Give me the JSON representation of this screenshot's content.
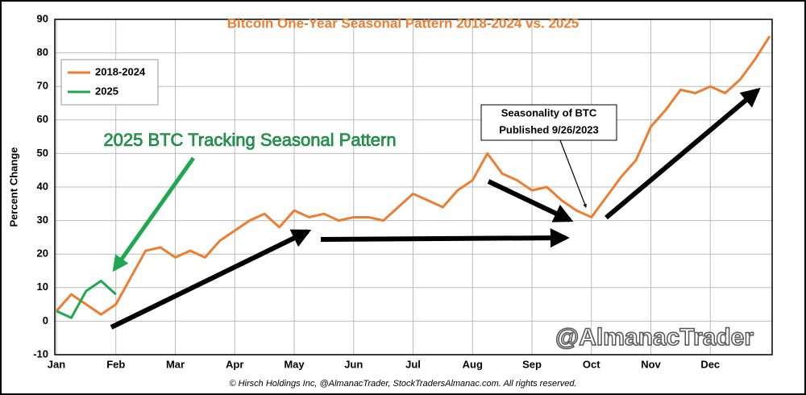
{
  "chart_data": {
    "type": "line",
    "title": "Bitcoin One-Year Seasonal Pattern 2018-2024 vs. 2025",
    "y_label": "Percent Change",
    "categories": [
      "Jan",
      null,
      null,
      null,
      "Feb",
      null,
      null,
      null,
      "Mar",
      null,
      null,
      null,
      "Apr",
      null,
      null,
      null,
      "May",
      null,
      null,
      null,
      "Jun",
      null,
      null,
      null,
      "Jul",
      null,
      null,
      null,
      "Aug",
      null,
      null,
      null,
      "Sep",
      null,
      null,
      null,
      "Oct",
      null,
      null,
      null,
      "Nov",
      null,
      null,
      null,
      "Dec",
      null,
      null,
      null,
      null
    ],
    "series": [
      {
        "name": "2018-2024",
        "color": "#ed7d31",
        "values": [
          3,
          8,
          5,
          2,
          5,
          13,
          21,
          22,
          19,
          21,
          19,
          24,
          27,
          30,
          32,
          28,
          33,
          31,
          32,
          30,
          31,
          31,
          30,
          34,
          38,
          36,
          34,
          39,
          42,
          50,
          44,
          42,
          39,
          40,
          36,
          33,
          31,
          37,
          43,
          48,
          58,
          63,
          69,
          68,
          70,
          68,
          72,
          78,
          85
        ]
      },
      {
        "name": "2025",
        "color": "#1fa84f",
        "values": [
          3,
          1,
          9,
          12,
          8,
          null,
          null,
          null,
          null,
          null,
          null,
          null,
          null,
          null,
          null,
          null,
          null,
          null,
          null,
          null,
          null,
          null,
          null,
          null,
          null,
          null,
          null,
          null,
          null,
          null,
          null,
          null,
          null,
          null,
          null,
          null,
          null,
          null,
          null,
          null,
          null,
          null,
          null,
          null,
          null,
          null,
          null,
          null,
          null
        ]
      }
    ],
    "ylim": [
      -10,
      90
    ],
    "yticks": [
      -10,
      0,
      10,
      20,
      30,
      40,
      50,
      60,
      70,
      80,
      90
    ],
    "grid": true,
    "legend": "upper-left",
    "annotation": "2025 BTC Tracking Seasonal Pattern",
    "callout": [
      "Seasonality of BTC",
      "Published 9/26/2023"
    ],
    "watermark": "@AlmanacTrader",
    "footer": "© Hirsch Holdings Inc, @AlmanacTrader, StockTradersAlmanac.com. All rights reserved."
  }
}
